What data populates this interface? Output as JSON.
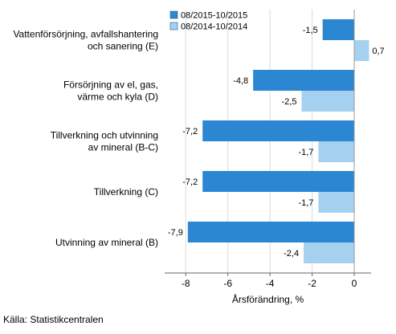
{
  "chart_data": {
    "type": "bar",
    "orientation": "horizontal",
    "categories": [
      [
        "Vattenförsörjning, avfallshantering",
        "och sanering (E)"
      ],
      [
        "Försörjning av el, gas,",
        "värme och kyla (D)"
      ],
      [
        "Tillverkning och utvinning",
        "av mineral (B-C)"
      ],
      [
        "Tillverkning (C)"
      ],
      [
        "Utvinning av mineral (B)"
      ]
    ],
    "series": [
      {
        "name": "08/2015-10/2015",
        "color": "#2b87d1",
        "values": [
          -1.5,
          -4.8,
          -7.2,
          -7.2,
          -7.9
        ],
        "labels": [
          "-1,5",
          "-4,8",
          "-7,2",
          "-7,2",
          "-7,9"
        ]
      },
      {
        "name": "08/2014-10/2014",
        "color": "#a6d0f0",
        "values": [
          0.7,
          -2.5,
          -1.7,
          -1.7,
          -2.4
        ],
        "labels": [
          "0,7",
          "-2,5",
          "-1,7",
          "-1,7",
          "-2,4"
        ]
      }
    ],
    "xlabel": "Årsförändring, %",
    "xlim": [
      -9,
      0.8
    ],
    "xticks": [
      -8,
      -6,
      -4,
      -2,
      0
    ],
    "xtick_labels": [
      "-8",
      "-6",
      "-4",
      "-2",
      "0"
    ],
    "grid": true,
    "legend_position": "top-left"
  },
  "source": "Källa: Statistikcentralen"
}
